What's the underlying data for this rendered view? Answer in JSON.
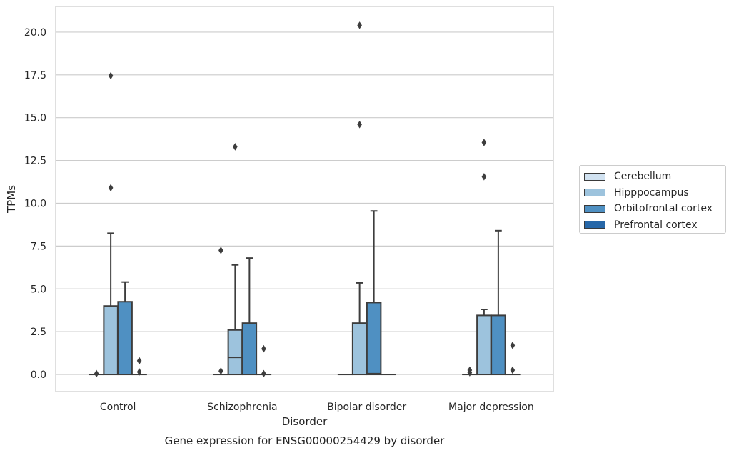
{
  "chart_data": {
    "type": "box",
    "xlabel": "Disorder",
    "ylabel": "TPMs",
    "caption": "Gene expression for ENSG00000254429 by disorder",
    "ylim": [
      -1.0,
      21.5
    ],
    "yticks": [
      0.0,
      2.5,
      5.0,
      7.5,
      10.0,
      12.5,
      15.0,
      17.5,
      20.0
    ],
    "ytick_labels": [
      "0.0",
      "2.5",
      "5.0",
      "7.5",
      "10.0",
      "12.5",
      "15.0",
      "17.5",
      "20.0"
    ],
    "categories": [
      "Control",
      "Schizophrenia",
      "Bipolar disorder",
      "Major depression"
    ],
    "grid": "horizontal",
    "legend_position": "right",
    "series": [
      {
        "name": "Cerebellum",
        "color": "#d1e2f1",
        "boxes": [
          {
            "q1": 0.0,
            "median": 0.0,
            "q3": 0.0,
            "whisker_low": 0.0,
            "whisker_high": 0.0,
            "outliers": [
              0.05
            ]
          },
          {
            "q1": 0.0,
            "median": 0.0,
            "q3": 0.0,
            "whisker_low": 0.0,
            "whisker_high": 0.0,
            "outliers": [
              0.2,
              7.25
            ]
          },
          {
            "q1": 0.0,
            "median": 0.0,
            "q3": 0.0,
            "whisker_low": 0.0,
            "whisker_high": 0.0,
            "outliers": []
          },
          {
            "q1": 0.0,
            "median": 0.0,
            "q3": 0.0,
            "whisker_low": 0.0,
            "whisker_high": 0.0,
            "outliers": [
              0.1,
              0.25
            ]
          }
        ]
      },
      {
        "name": "Hipppocampus",
        "color": "#9dc3dd",
        "boxes": [
          {
            "q1": 0.0,
            "median": 0.0,
            "q3": 4.0,
            "whisker_low": 0.0,
            "whisker_high": 8.25,
            "outliers": [
              10.9,
              17.45
            ]
          },
          {
            "q1": 0.0,
            "median": 1.0,
            "q3": 2.6,
            "whisker_low": 0.0,
            "whisker_high": 6.4,
            "outliers": [
              13.3
            ]
          },
          {
            "q1": 0.0,
            "median": 0.0,
            "q3": 3.0,
            "whisker_low": 0.0,
            "whisker_high": 5.35,
            "outliers": [
              14.6,
              20.4
            ]
          },
          {
            "q1": 0.0,
            "median": 0.0,
            "q3": 3.45,
            "whisker_low": 0.0,
            "whisker_high": 3.8,
            "outliers": [
              11.55,
              13.55
            ]
          }
        ]
      },
      {
        "name": "Orbitofrontal cortex",
        "color": "#4f90c2",
        "boxes": [
          {
            "q1": 0.0,
            "median": 0.0,
            "q3": 4.25,
            "whisker_low": 0.0,
            "whisker_high": 5.4,
            "outliers": []
          },
          {
            "q1": 0.0,
            "median": 0.0,
            "q3": 3.0,
            "whisker_low": 0.0,
            "whisker_high": 6.8,
            "outliers": []
          },
          {
            "q1": 0.0,
            "median": 0.05,
            "q3": 4.2,
            "whisker_low": 0.0,
            "whisker_high": 9.55,
            "outliers": []
          },
          {
            "q1": 0.0,
            "median": 0.0,
            "q3": 3.45,
            "whisker_low": 0.0,
            "whisker_high": 8.4,
            "outliers": []
          }
        ]
      },
      {
        "name": "Prefrontal cortex",
        "color": "#2767a8",
        "boxes": [
          {
            "q1": 0.0,
            "median": 0.0,
            "q3": 0.0,
            "whisker_low": 0.0,
            "whisker_high": 0.0,
            "outliers": [
              0.15,
              0.8
            ]
          },
          {
            "q1": 0.0,
            "median": 0.0,
            "q3": 0.0,
            "whisker_low": 0.0,
            "whisker_high": 0.0,
            "outliers": [
              0.05,
              1.5
            ]
          },
          {
            "q1": 0.0,
            "median": 0.0,
            "q3": 0.0,
            "whisker_low": 0.0,
            "whisker_high": 0.0,
            "outliers": []
          },
          {
            "q1": 0.0,
            "median": 0.0,
            "q3": 0.0,
            "whisker_low": 0.0,
            "whisker_high": 0.0,
            "outliers": [
              0.25,
              1.7
            ]
          }
        ]
      }
    ]
  }
}
